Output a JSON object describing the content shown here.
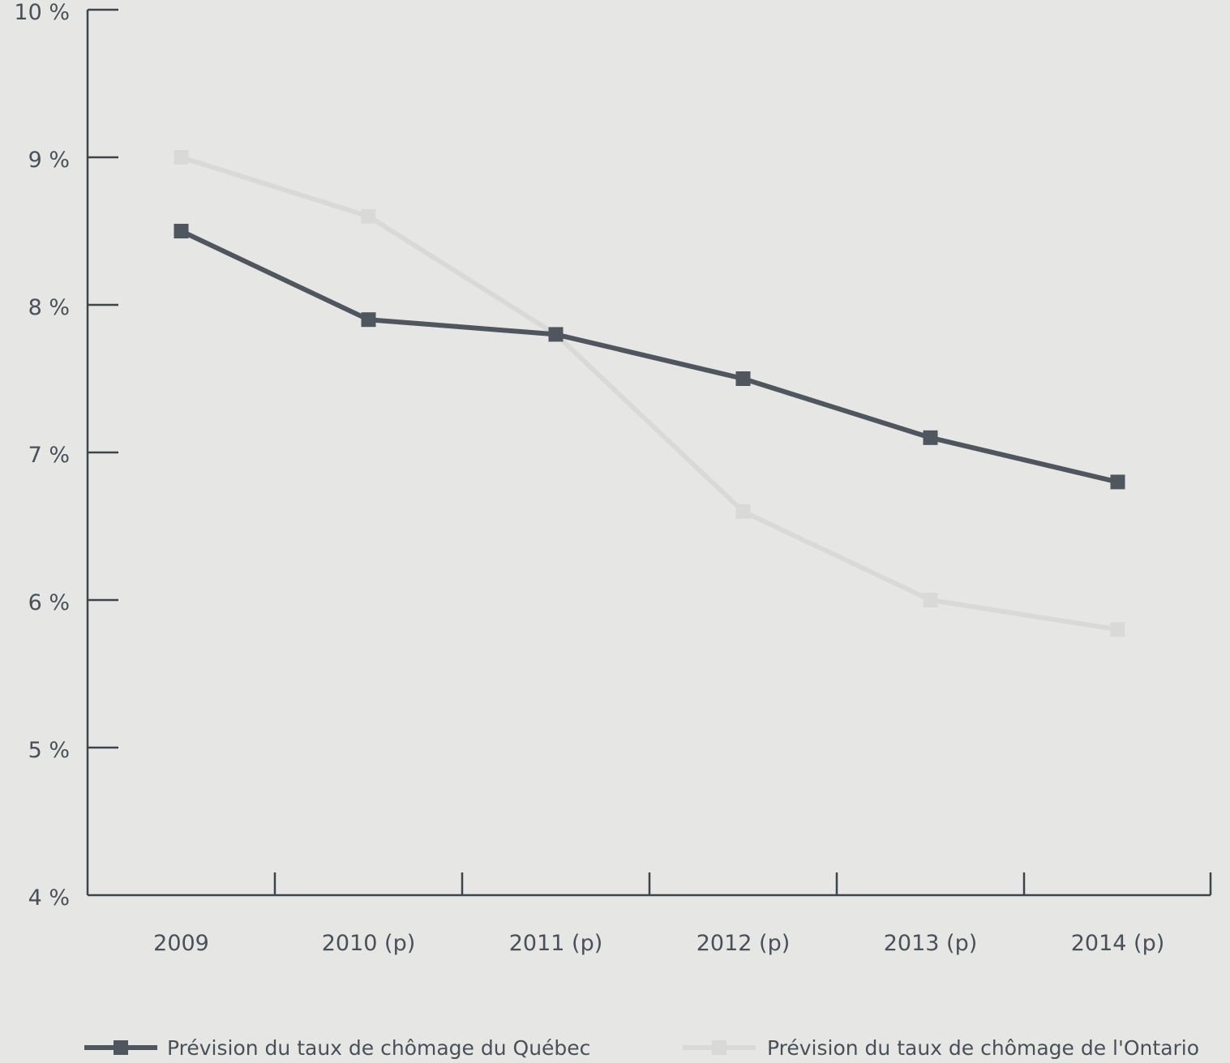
{
  "chart_data": {
    "type": "line",
    "categories": [
      "2009",
      "2010 (p)",
      "2011 (p)",
      "2012 (p)",
      "2013 (p)",
      "2014 (p)"
    ],
    "series": [
      {
        "name": "Prévision du taux de chômage du Québec",
        "values": [
          8.5,
          7.9,
          7.8,
          7.5,
          7.1,
          6.8
        ],
        "color": "#4f565e",
        "marker": "square"
      },
      {
        "name": "Prévision du taux de chômage de l'Ontario",
        "values": [
          9.0,
          8.6,
          7.8,
          6.6,
          6.0,
          5.8
        ],
        "color": "#d9d9d7",
        "marker": "square"
      }
    ],
    "ylim": [
      4,
      10
    ],
    "yticks": [
      4,
      5,
      6,
      7,
      8,
      9,
      10
    ],
    "ytick_labels": [
      "4 %",
      "5 %",
      "6 %",
      "7 %",
      "8 %",
      "9 %",
      "10 %"
    ],
    "title": "",
    "xlabel": "",
    "ylabel": "",
    "grid": false,
    "legend_position": "bottom"
  }
}
